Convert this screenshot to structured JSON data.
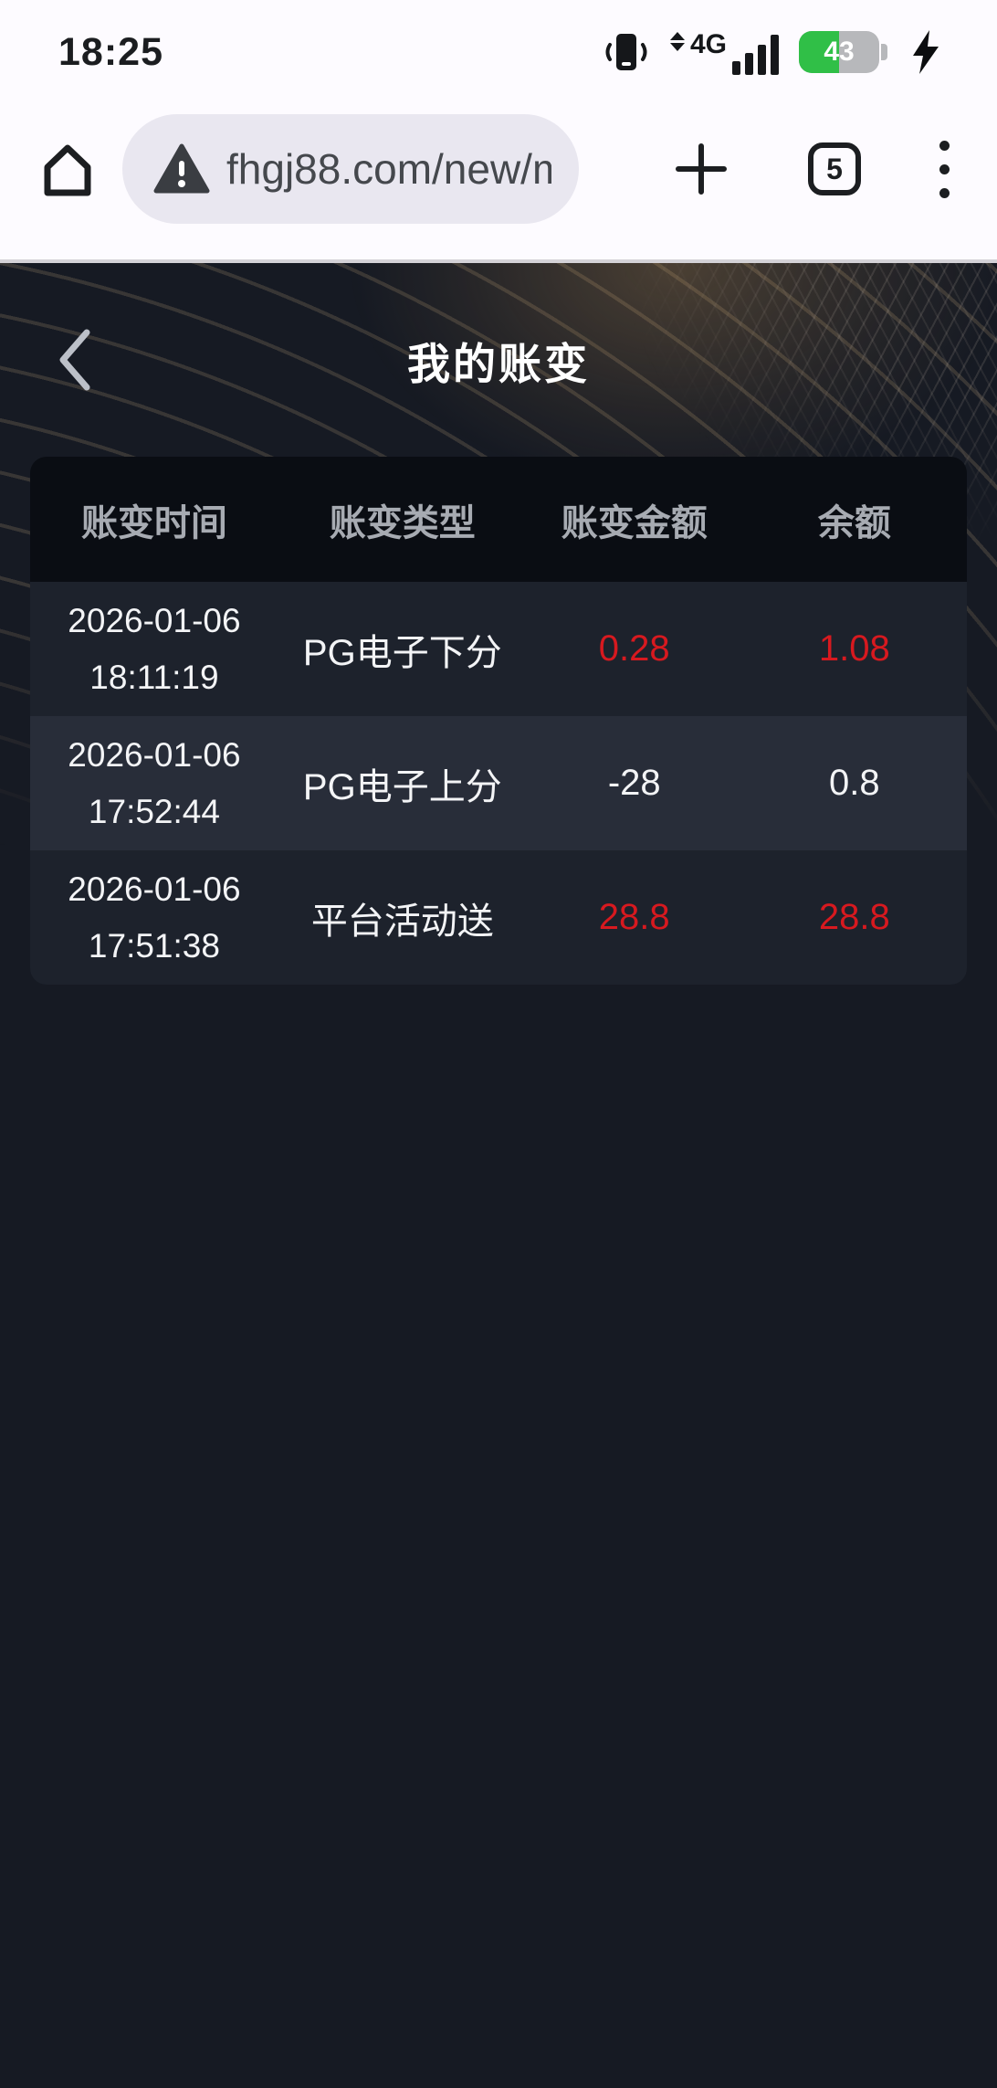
{
  "status_bar": {
    "time": "18:25",
    "network_label": "4G",
    "battery_percent": "43",
    "battery_fill_ratio": "50%",
    "icons": [
      "vibrate-icon",
      "data-arrows-icon",
      "signal-bars-icon",
      "battery-icon",
      "charging-bolt-icon"
    ]
  },
  "browser": {
    "url": "fhgj88.com/new/m",
    "tab_count": "5",
    "icons": [
      "home-icon",
      "warning-triangle-icon",
      "new-tab-plus-icon",
      "tab-switcher-icon",
      "overflow-menu-icon"
    ]
  },
  "page": {
    "title": "我的账变",
    "back_icon": "chevron-left-icon"
  },
  "table": {
    "headers": [
      "账变时间",
      "账变类型",
      "账变金额",
      "余额"
    ],
    "rows": [
      {
        "date": "2026-01-06",
        "time": "18:11:19",
        "type": "PG电子下分",
        "amount": "0.28",
        "balance": "1.08",
        "value_color": "#d7191f"
      },
      {
        "date": "2026-01-06",
        "time": "17:52:44",
        "type": "PG电子上分",
        "amount": "-28",
        "balance": "0.8",
        "value_color": "#f3f4f6"
      },
      {
        "date": "2026-01-06",
        "time": "17:51:38",
        "type": "平台活动送",
        "amount": "28.8",
        "balance": "28.8",
        "value_color": "#d7191f"
      }
    ]
  },
  "colors": {
    "accent_red": "#d7191f",
    "page_bg": "#161a23",
    "card_header_bg": "#0a0d13",
    "row_dark": "#1d222c",
    "row_light": "#282d39",
    "battery_green": "#30bf47",
    "pattern_gold": "#c4a87c"
  }
}
